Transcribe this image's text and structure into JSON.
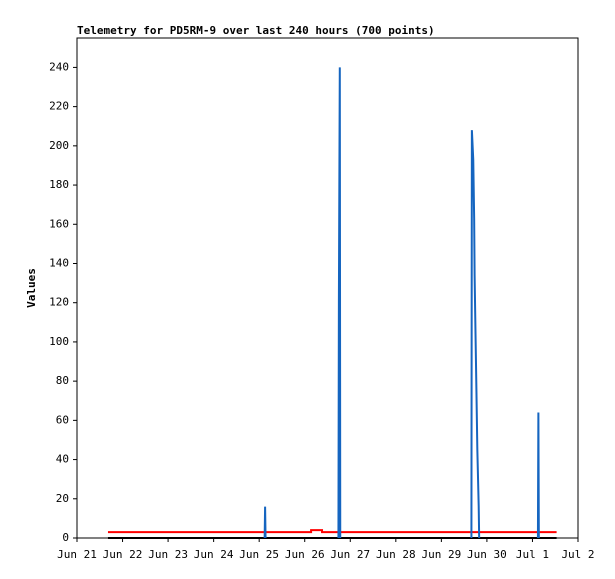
{
  "chart_data": {
    "type": "line",
    "title": "Telemetry for PD5RM-9 over last 240 hours (700 points)",
    "y_label": "Values",
    "xlim": [
      0,
      11
    ],
    "xticks": [
      {
        "value": 0,
        "label": "Jun 21"
      },
      {
        "value": 1,
        "label": "Jun 22"
      },
      {
        "value": 2,
        "label": "Jun 23"
      },
      {
        "value": 3,
        "label": "Jun 24"
      },
      {
        "value": 4,
        "label": "Jun 25"
      },
      {
        "value": 5,
        "label": "Jun 26"
      },
      {
        "value": 6,
        "label": "Jun 27"
      },
      {
        "value": 7,
        "label": "Jun 28"
      },
      {
        "value": 8,
        "label": "Jun 29"
      },
      {
        "value": 9,
        "label": "Jun 30"
      },
      {
        "value": 10,
        "label": "Jul 1"
      },
      {
        "value": 11,
        "label": "Jul 2"
      }
    ],
    "ylim": [
      0,
      255
    ],
    "yticks": [
      0,
      20,
      40,
      60,
      80,
      100,
      120,
      140,
      160,
      180,
      200,
      220,
      240
    ],
    "series": [
      {
        "color": "#000000",
        "x": [
          0.68,
          10.53
        ],
        "values": [
          0,
          0
        ]
      },
      {
        "color": "#ff0000",
        "x": [
          0.68,
          5.14,
          5.14,
          5.38,
          5.38,
          10.53
        ],
        "values": [
          3,
          3,
          4,
          4,
          3,
          3
        ]
      },
      {
        "color": "#1565c0",
        "x": [
          4.12,
          4.13,
          4.14,
          null,
          5.74,
          5.75,
          5.77,
          5.78,
          null,
          8.66,
          8.67,
          8.7,
          8.72,
          8.73,
          8.75,
          8.77,
          8.79,
          8.82,
          8.83,
          null,
          10.12,
          10.13,
          10.14
        ],
        "values": [
          0,
          16,
          0,
          null,
          0,
          120,
          240,
          0,
          null,
          0,
          208,
          193,
          163,
          134,
          104,
          75,
          45,
          16,
          0,
          null,
          0,
          64,
          0
        ]
      }
    ]
  }
}
